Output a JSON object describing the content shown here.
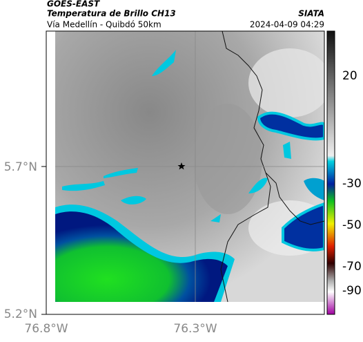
{
  "header": {
    "title": "GOES-EAST",
    "subtitle": "Temperatura de Brillo CH13",
    "location": "Vía Medellín - Quibdó 50km",
    "source": "SIATA",
    "datetime": "2024-04-09 04:29"
  },
  "axes": {
    "lat_labels": [
      "5.7°N",
      "5.2°N"
    ],
    "lon_labels": [
      "76.8°W",
      "76.3°W"
    ]
  },
  "colorbar": {
    "labels": [
      "20",
      "-30",
      "-50",
      "-70",
      "-90"
    ]
  }
}
